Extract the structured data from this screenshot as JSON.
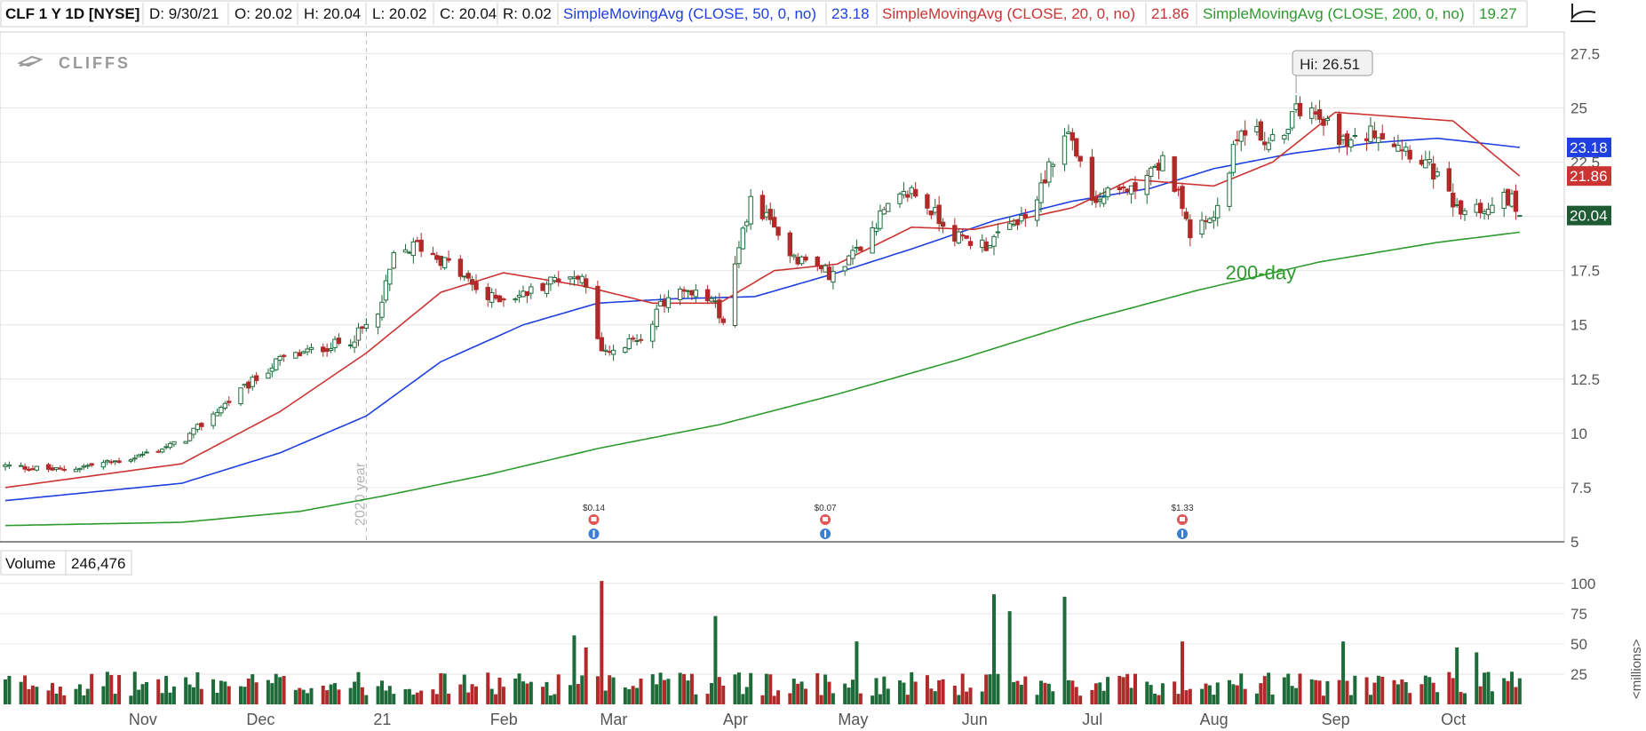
{
  "header": {
    "symbol": "CLF 1 Y 1D [NYSE]",
    "date": "D: 9/30/21",
    "open": "O: 20.02",
    "high": "H: 20.04",
    "low": "L: 20.02",
    "close": "C: 20.04",
    "range": "R: 0.02",
    "sma50_label": "SimpleMovingAvg (CLOSE, 50, 0, no)",
    "sma50_value": "23.18",
    "sma20_label": "SimpleMovingAvg (CLOSE, 20, 0, no)",
    "sma20_value": "21.86",
    "sma200_label": "SimpleMovingAvg (CLOSE, 200, 0, no)",
    "sma200_value": "19.27"
  },
  "watermark": "CLIFFS",
  "colors": {
    "up": "#1e6b3a",
    "down": "#b02a2a",
    "sma50": "#1f3fe0",
    "sma20": "#cc3333",
    "sma200": "#2e9a2e",
    "grid": "#e6e6e6",
    "axis_text": "#555555"
  },
  "volume_panel": {
    "label": "Volume",
    "value": "246,476",
    "unit_label": "<millions>"
  },
  "chart_data": [
    {
      "type": "candlestick",
      "title": "CLF 1 Y 1D [NYSE]",
      "ylim": [
        5,
        28.5
      ],
      "y_ticks": [
        "5",
        "7.5",
        "10",
        "12.5",
        "15",
        "17.5",
        "20",
        "22.5",
        "25",
        "27.5"
      ],
      "x_labels": [
        "Nov",
        "Dec",
        "21",
        "Feb",
        "Mar",
        "Apr",
        "May",
        "Jun",
        "Jul",
        "Aug",
        "Sep",
        "Oct"
      ],
      "close_anchors": [
        [
          "2020-10-01",
          8.5
        ],
        [
          "2020-10-15",
          8.3
        ],
        [
          "2020-11-01",
          8.8
        ],
        [
          "2020-11-15",
          9.6
        ],
        [
          "2020-11-25",
          11.2
        ],
        [
          "2020-12-10",
          13.4
        ],
        [
          "2020-12-28",
          14.3
        ],
        [
          "2021-01-04",
          15.4
        ],
        [
          "2021-01-08",
          18.1
        ],
        [
          "2021-01-14",
          18.7
        ],
        [
          "2021-01-22",
          17.8
        ],
        [
          "2021-02-01",
          16.2
        ],
        [
          "2021-02-10",
          16.4
        ],
        [
          "2021-02-20",
          17.3
        ],
        [
          "2021-02-25",
          17.2
        ],
        [
          "2021-02-27",
          16.6
        ],
        [
          "2021-03-01",
          14.2
        ],
        [
          "2021-03-04",
          13.6
        ],
        [
          "2021-03-12",
          14.5
        ],
        [
          "2021-03-20",
          16.6
        ],
        [
          "2021-03-30",
          16.2
        ],
        [
          "2021-04-02",
          15.2
        ],
        [
          "2021-04-09",
          20.8
        ],
        [
          "2021-04-20",
          18.2
        ],
        [
          "2021-05-01",
          17.2
        ],
        [
          "2021-05-12",
          20.0
        ],
        [
          "2021-05-20",
          21.2
        ],
        [
          "2021-06-01",
          19.0
        ],
        [
          "2021-06-08",
          18.7
        ],
        [
          "2021-06-20",
          20.3
        ],
        [
          "2021-06-24",
          22.4
        ],
        [
          "2021-06-29",
          23.9
        ],
        [
          "2021-07-05",
          20.7
        ],
        [
          "2021-07-15",
          21.4
        ],
        [
          "2021-07-24",
          22.6
        ],
        [
          "2021-07-30",
          19.2
        ],
        [
          "2021-08-05",
          19.8
        ],
        [
          "2021-08-12",
          24.2
        ],
        [
          "2021-08-20",
          23.4
        ],
        [
          "2021-08-29",
          25.5
        ],
        [
          "2021-09-03",
          24.4
        ],
        [
          "2021-09-08",
          23.2
        ],
        [
          "2021-09-15",
          24.0
        ],
        [
          "2021-09-22",
          23.3
        ],
        [
          "2021-09-28",
          22.5
        ],
        [
          "2021-10-02",
          21.5
        ],
        [
          "2021-10-06",
          20.2
        ],
        [
          "2021-10-13",
          20.5
        ],
        [
          "2021-10-20",
          20.9
        ],
        [
          "2021-10-22",
          20.04
        ]
      ],
      "high_label": "Hi: 26.51",
      "series": [
        {
          "name": "SimpleMovingAvg (CLOSE, 50, 0, no)",
          "last": 23.18,
          "points": [
            [
              "2020-10-01",
              6.9
            ],
            [
              "2020-11-15",
              7.7
            ],
            [
              "2020-12-10",
              9.1
            ],
            [
              "2021-01-01",
              10.8
            ],
            [
              "2021-01-20",
              13.3
            ],
            [
              "2021-02-10",
              15.0
            ],
            [
              "2021-03-01",
              16.0
            ],
            [
              "2021-03-20",
              16.2
            ],
            [
              "2021-04-10",
              16.3
            ],
            [
              "2021-05-01",
              17.4
            ],
            [
              "2021-05-20",
              18.5
            ],
            [
              "2021-06-10",
              19.8
            ],
            [
              "2021-06-30",
              20.7
            ],
            [
              "2021-07-20",
              21.3
            ],
            [
              "2021-08-05",
              22.2
            ],
            [
              "2021-08-25",
              22.9
            ],
            [
              "2021-09-15",
              23.4
            ],
            [
              "2021-10-01",
              23.6
            ],
            [
              "2021-10-22",
              23.18
            ]
          ]
        },
        {
          "name": "SimpleMovingAvg (CLOSE, 20, 0, no)",
          "last": 21.86,
          "points": [
            [
              "2020-10-01",
              7.5
            ],
            [
              "2020-11-15",
              8.6
            ],
            [
              "2020-12-10",
              11.0
            ],
            [
              "2021-01-01",
              13.7
            ],
            [
              "2021-01-20",
              16.5
            ],
            [
              "2021-02-05",
              17.4
            ],
            [
              "2021-02-25",
              16.8
            ],
            [
              "2021-03-15",
              16.0
            ],
            [
              "2021-04-01",
              16.0
            ],
            [
              "2021-04-15",
              17.5
            ],
            [
              "2021-05-01",
              17.8
            ],
            [
              "2021-05-20",
              19.5
            ],
            [
              "2021-06-05",
              19.4
            ],
            [
              "2021-06-30",
              20.4
            ],
            [
              "2021-07-15",
              21.7
            ],
            [
              "2021-08-05",
              21.4
            ],
            [
              "2021-08-20",
              22.5
            ],
            [
              "2021-09-05",
              24.8
            ],
            [
              "2021-09-20",
              24.6
            ],
            [
              "2021-10-05",
              24.4
            ],
            [
              "2021-10-22",
              21.86
            ]
          ]
        },
        {
          "name": "SimpleMovingAvg (CLOSE, 200, 0, no)",
          "last": 19.27,
          "points": [
            [
              "2020-10-01",
              5.75
            ],
            [
              "2020-11-15",
              5.9
            ],
            [
              "2020-12-15",
              6.4
            ],
            [
              "2021-01-05",
              7.1
            ],
            [
              "2021-02-01",
              8.1
            ],
            [
              "2021-03-01",
              9.3
            ],
            [
              "2021-04-01",
              10.4
            ],
            [
              "2021-05-01",
              11.8
            ],
            [
              "2021-06-01",
              13.4
            ],
            [
              "2021-07-01",
              15.1
            ],
            [
              "2021-08-01",
              16.6
            ],
            [
              "2021-09-01",
              17.9
            ],
            [
              "2021-10-01",
              18.8
            ],
            [
              "2021-10-22",
              19.27
            ]
          ]
        }
      ],
      "price_labels": [
        "23.18",
        "21.86",
        "20.04"
      ],
      "annotations": [
        "200-day",
        "2020 year"
      ],
      "dividends": [
        {
          "date": "2021-02-28",
          "amount": "$0.14"
        },
        {
          "date": "2021-04-28",
          "amount": "$0.07"
        },
        {
          "date": "2021-07-28",
          "amount": "$1.33"
        }
      ],
      "grid": true
    },
    {
      "type": "bar",
      "title": "Volume",
      "ylabel": "<millions>",
      "ylim": [
        0,
        105
      ],
      "y_ticks": [
        "25",
        "50",
        "75",
        "100"
      ],
      "highlights": [
        [
          "2021-02-25",
          57
        ],
        [
          "2021-02-28",
          47
        ],
        [
          "2021-03-04",
          102
        ],
        [
          "2021-04-02",
          73
        ],
        [
          "2021-05-08",
          52
        ],
        [
          "2021-06-12",
          91
        ],
        [
          "2021-06-14",
          77
        ],
        [
          "2021-06-28",
          89
        ],
        [
          "2021-07-30",
          52
        ],
        [
          "2021-09-09",
          52
        ],
        [
          "2021-10-08",
          47
        ],
        [
          "2021-10-11",
          43
        ]
      ]
    }
  ]
}
